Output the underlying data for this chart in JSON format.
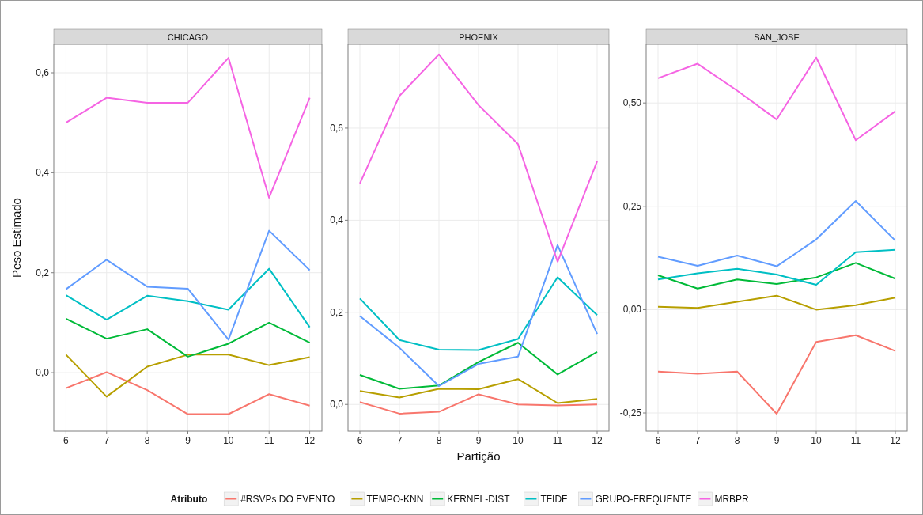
{
  "chart_data": [
    {
      "type": "line",
      "title": "CHICAGO",
      "ylabel": "Peso Estimado",
      "x": [
        6,
        7,
        8,
        9,
        10,
        11,
        12
      ],
      "xlim": [
        5.7,
        12.3
      ],
      "xticks": [
        6,
        7,
        8,
        9,
        10,
        11,
        12
      ],
      "ylim": [
        -0.117,
        0.657
      ],
      "yticks": [
        {
          "value": 0,
          "label": "0,0"
        },
        {
          "value": 0.2,
          "label": "0,2"
        },
        {
          "value": 0.4,
          "label": "0,4"
        },
        {
          "value": 0.6,
          "label": "0,6"
        }
      ],
      "grid": true,
      "legend": false,
      "series": [
        {
          "color": "#f8766d",
          "values": [
            -0.031,
            0.001,
            -0.035,
            -0.083,
            -0.083,
            -0.043,
            -0.066
          ]
        },
        {
          "color": "#b79f00",
          "values": [
            0.036,
            -0.048,
            0.012,
            0.036,
            0.036,
            0.015,
            0.031
          ]
        },
        {
          "color": "#00ba38",
          "values": [
            0.108,
            0.068,
            0.087,
            0.032,
            0.058,
            0.1,
            0.06
          ]
        },
        {
          "color": "#00bfc4",
          "values": [
            0.155,
            0.106,
            0.154,
            0.143,
            0.126,
            0.208,
            0.091
          ]
        },
        {
          "color": "#619cff",
          "values": [
            0.167,
            0.226,
            0.172,
            0.168,
            0.066,
            0.284,
            0.205
          ]
        },
        {
          "color": "#f564e3",
          "values": [
            0.5,
            0.55,
            0.54,
            0.54,
            0.63,
            0.35,
            0.55
          ]
        }
      ]
    },
    {
      "type": "line",
      "title": "PHOENIX",
      "xlabel": "Partição",
      "legend_title": "Atributo",
      "x": [
        6,
        7,
        8,
        9,
        10,
        11,
        12
      ],
      "xlim": [
        5.7,
        12.3
      ],
      "xticks": [
        6,
        7,
        8,
        9,
        10,
        11,
        12
      ],
      "ylim": [
        -0.058,
        0.782
      ],
      "yticks": [
        {
          "value": 0,
          "label": "0,0"
        },
        {
          "value": 0.2,
          "label": "0,2"
        },
        {
          "value": 0.4,
          "label": "0,4"
        },
        {
          "value": 0.6,
          "label": "0,6"
        }
      ],
      "grid": true,
      "legend": "bottom",
      "series": [
        {
          "name": "#RSVPs DO EVENTO",
          "color": "#f8766d",
          "values": [
            0.005,
            -0.02,
            -0.016,
            0.022,
            0,
            -0.002,
            0
          ]
        },
        {
          "name": "TEMPO-KNN",
          "color": "#b79f00",
          "values": [
            0.029,
            0.015,
            0.034,
            0.033,
            0.055,
            0.003,
            0.012
          ]
        },
        {
          "name": "KERNEL-DIST",
          "color": "#00ba38",
          "values": [
            0.064,
            0.034,
            0.041,
            0.092,
            0.134,
            0.065,
            0.114
          ]
        },
        {
          "name": "TFIDF",
          "color": "#00bfc4",
          "values": [
            0.23,
            0.14,
            0.119,
            0.118,
            0.142,
            0.276,
            0.194
          ]
        },
        {
          "name": "GRUPO-FREQUENTE",
          "color": "#619cff",
          "values": [
            0.192,
            0.123,
            0.04,
            0.088,
            0.104,
            0.346,
            0.153
          ]
        },
        {
          "name": "MRBPR",
          "color": "#f564e3",
          "values": [
            0.48,
            0.67,
            0.76,
            0.65,
            0.565,
            0.31,
            0.528
          ]
        }
      ]
    },
    {
      "type": "line",
      "title": "SAN_JOSE",
      "x": [
        6,
        7,
        8,
        9,
        10,
        11,
        12
      ],
      "xlim": [
        5.7,
        12.3
      ],
      "xticks": [
        6,
        7,
        8,
        9,
        10,
        11,
        12
      ],
      "ylim": [
        -0.294,
        0.642
      ],
      "yticks": [
        {
          "value": -0.25,
          "label": "-0,25"
        },
        {
          "value": 0,
          "label": "0,00"
        },
        {
          "value": 0.25,
          "label": "0,25"
        },
        {
          "value": 0.5,
          "label": "0,50"
        }
      ],
      "grid": true,
      "legend": false,
      "series": [
        {
          "color": "#f8766d",
          "values": [
            -0.15,
            -0.155,
            -0.15,
            -0.252,
            -0.078,
            -0.062,
            -0.1
          ]
        },
        {
          "color": "#b79f00",
          "values": [
            0.007,
            0.004,
            0.019,
            0.034,
            0,
            0.011,
            0.029
          ]
        },
        {
          "color": "#00ba38",
          "values": [
            0.083,
            0.051,
            0.073,
            0.062,
            0.078,
            0.113,
            0.075
          ]
        },
        {
          "color": "#00bfc4",
          "values": [
            0.073,
            0.088,
            0.099,
            0.085,
            0.06,
            0.139,
            0.145
          ]
        },
        {
          "color": "#619cff",
          "values": [
            0.128,
            0.106,
            0.131,
            0.105,
            0.17,
            0.263,
            0.167
          ]
        },
        {
          "color": "#f564e3",
          "values": [
            0.56,
            0.595,
            0.53,
            0.46,
            0.61,
            0.41,
            0.48
          ]
        }
      ]
    }
  ]
}
